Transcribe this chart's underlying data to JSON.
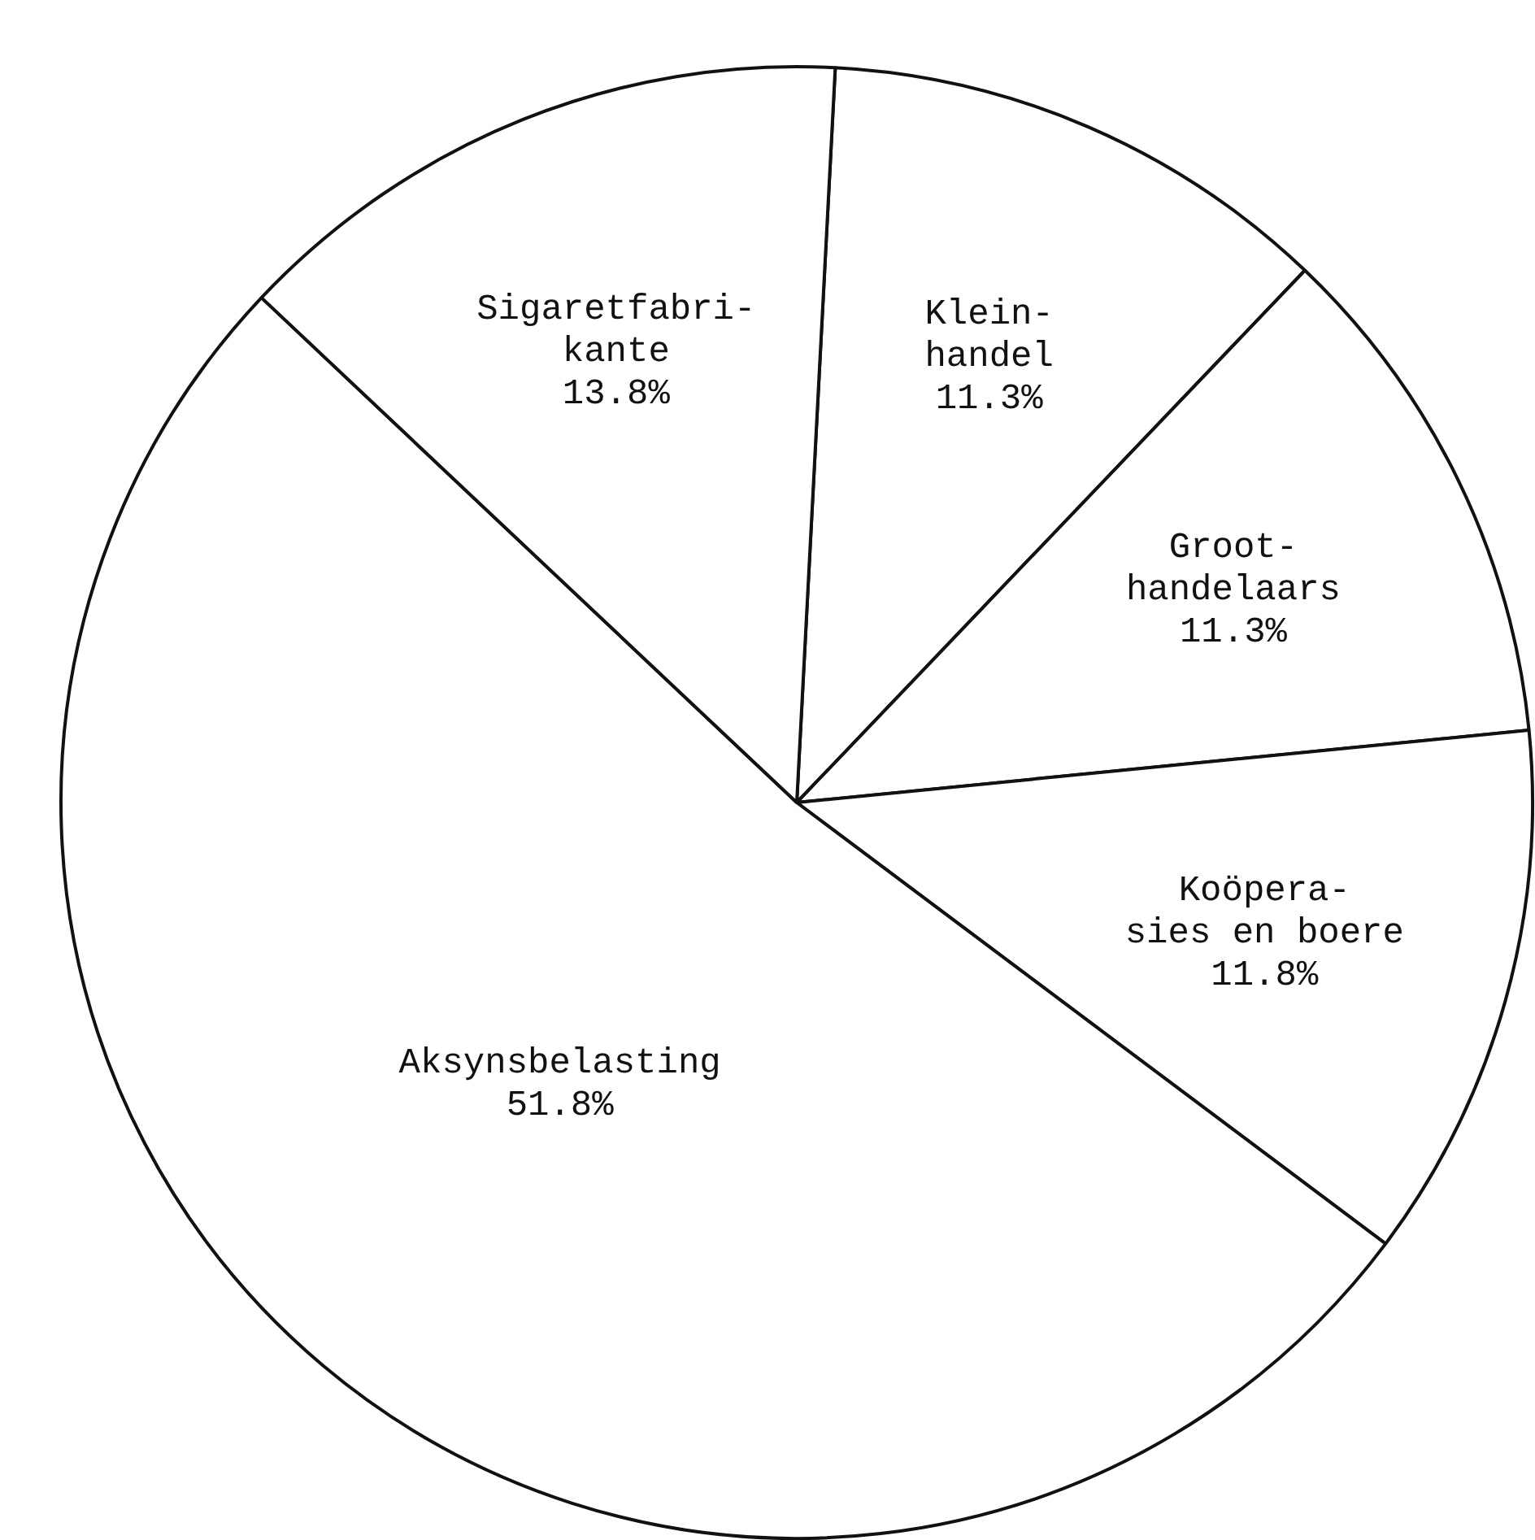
{
  "chart_data": {
    "type": "pie",
    "categories": [
      "Klein-\nhandel",
      "Groot-\nhandelaars",
      "Koöpera-\nsies en boere",
      "Aksynsbelasting",
      "Sigaretfabri-\nkante"
    ],
    "values": [
      11.3,
      11.3,
      11.8,
      51.8,
      13.8
    ],
    "value_labels": [
      "11.3%",
      "11.3%",
      "11.8%",
      "51.8%",
      "13.8%"
    ],
    "colors": [
      "#ffffff",
      "#ffffff",
      "#ffffff",
      "#ffffff",
      "#ffffff"
    ],
    "legend": false
  }
}
